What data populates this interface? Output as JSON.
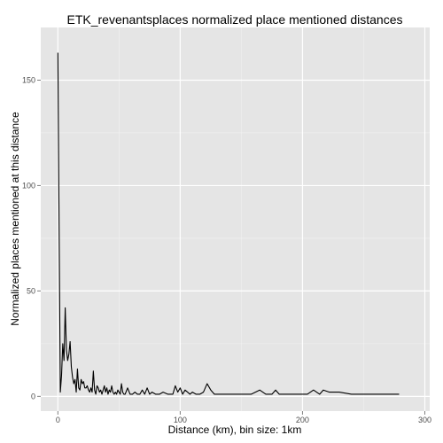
{
  "chart_data": {
    "type": "line",
    "title": "ETK_revenantsplaces normalized place mentioned distances",
    "xlabel": "Distance (km), bin size: 1km",
    "ylabel": "Normalized places mentioned at this distance",
    "xlim": [
      -14,
      304
    ],
    "ylim": [
      -7,
      175
    ],
    "x_ticks": [
      0,
      100,
      200,
      300
    ],
    "x_tick_labels": [
      "0",
      "100",
      "200",
      "300"
    ],
    "x_minor_ticks": [
      50,
      150,
      250
    ],
    "y_ticks": [
      0,
      50,
      100,
      150
    ],
    "y_tick_labels": [
      "0",
      "50",
      "100",
      "150"
    ],
    "y_minor_ticks": [
      25,
      75,
      125
    ],
    "grid": true,
    "panel_background": "#e5e5e5",
    "grid_major_color": "#ffffff",
    "grid_minor_color": "#f2f2f2",
    "line_color": "#000000",
    "series": [
      {
        "x": [
          0,
          1,
          2,
          3,
          4,
          5,
          6,
          7,
          8,
          9,
          10,
          11,
          12,
          13,
          14,
          15,
          16,
          17,
          18,
          19,
          20,
          21,
          22,
          23,
          24,
          25,
          26,
          27,
          28,
          29,
          30,
          31,
          32,
          33,
          34,
          35,
          36,
          37,
          38,
          39,
          40,
          41,
          42,
          43,
          44,
          45,
          46,
          47,
          48,
          49,
          50,
          51,
          52,
          53,
          54,
          55,
          57,
          59,
          61,
          63,
          65,
          67,
          69,
          71,
          73,
          75,
          77,
          80,
          83,
          86,
          90,
          94,
          96,
          98,
          100,
          102,
          104,
          106,
          108,
          110,
          113,
          116,
          119,
          122,
          125,
          128,
          131,
          134,
          140,
          146,
          152,
          158,
          165,
          170,
          175,
          178,
          181,
          186,
          192,
          198,
          204,
          209,
          214,
          217,
          222,
          230,
          240,
          250,
          260,
          270,
          279
        ],
        "y": [
          163,
          80,
          2,
          10,
          25,
          17,
          42,
          22,
          17,
          20,
          26,
          14,
          9,
          6,
          8,
          2,
          13,
          4,
          3,
          8,
          6,
          7,
          4,
          4,
          5,
          3,
          2,
          4,
          2,
          12,
          3,
          1,
          5,
          4,
          2,
          3,
          1,
          3,
          5,
          2,
          4,
          1,
          3,
          2,
          5,
          2,
          1,
          2,
          1,
          3,
          2,
          1,
          6,
          2,
          1,
          1,
          4,
          1,
          1,
          2,
          1,
          1,
          3,
          1,
          4,
          1,
          2,
          1,
          1,
          2,
          1,
          1,
          5,
          2,
          4,
          1,
          3,
          2,
          1,
          2,
          1,
          1,
          2,
          6,
          3,
          1,
          1,
          1,
          1,
          1,
          1,
          1,
          3,
          1,
          1,
          3,
          1,
          1,
          1,
          1,
          1,
          3,
          1,
          3,
          2,
          2,
          1,
          1,
          1,
          1,
          1
        ]
      }
    ]
  }
}
